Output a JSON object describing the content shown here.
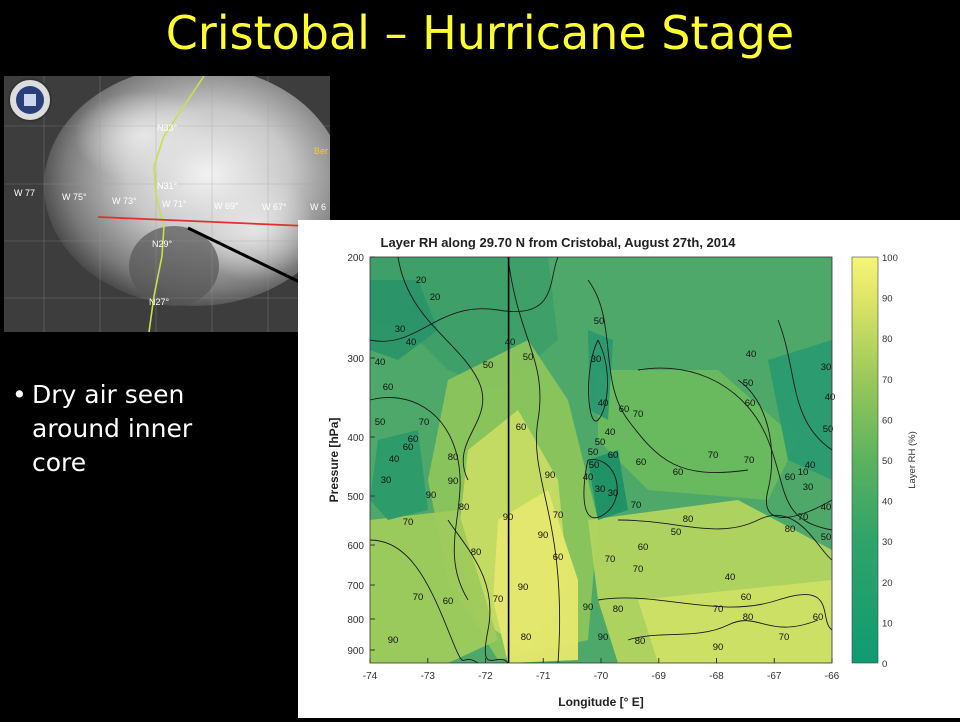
{
  "slide": {
    "title": "Cristobal – Hurricane Stage",
    "bullet": "Dry air seen around inner core"
  },
  "satellite": {
    "lat_labels": [
      "N33°",
      "N31°",
      "N29°",
      "N27°"
    ],
    "lon_labels": [
      "W 77",
      "W 75°",
      "W 73°",
      "W 71°",
      "W 69°",
      "W 67°",
      "W 6"
    ],
    "fragment": "Ber"
  },
  "chart_data": {
    "type": "contour",
    "title": "Layer RH along 29.70 N from Cristobal, August 27th, 2014",
    "xlabel": "Longitude [° E]",
    "ylabel": "Pressure [hPa]",
    "xlim": [
      -74,
      -66
    ],
    "x_ticks": [
      "-74",
      "-73",
      "-72",
      "-71",
      "-70",
      "-69",
      "-68",
      "-67",
      "-66"
    ],
    "y_ticks": [
      "200",
      "300",
      "400",
      "500",
      "600",
      "700",
      "800",
      "900"
    ],
    "colorbar_label": "Layer RH (%)",
    "colorbar_ticks": [
      "100",
      "90",
      "80",
      "70",
      "60",
      "50",
      "40",
      "30",
      "20",
      "10",
      "0"
    ],
    "contour_labels": [
      "20",
      "30",
      "20",
      "40",
      "40",
      "50",
      "40",
      "60",
      "50",
      "60",
      "70",
      "80",
      "90",
      "80",
      "90",
      "50",
      "60",
      "50",
      "30",
      "40",
      "50",
      "40",
      "50",
      "60",
      "50",
      "30",
      "30",
      "40",
      "60",
      "60",
      "70",
      "70",
      "80",
      "50",
      "40",
      "70",
      "60",
      "80",
      "70",
      "60",
      "70",
      "70",
      "80",
      "90",
      "70",
      "60",
      "90",
      "80",
      "90",
      "90",
      "70",
      "90",
      "80",
      "90",
      "80",
      "60",
      "70",
      "10",
      "30",
      "40",
      "50",
      "40",
      "60",
      "70",
      "80",
      "40",
      "50",
      "60",
      "70",
      "30",
      "40",
      "50",
      "60",
      "70",
      "60",
      "40",
      "30",
      "90",
      "90",
      "60",
      "70"
    ],
    "storm_center_longitude": -71.6
  }
}
